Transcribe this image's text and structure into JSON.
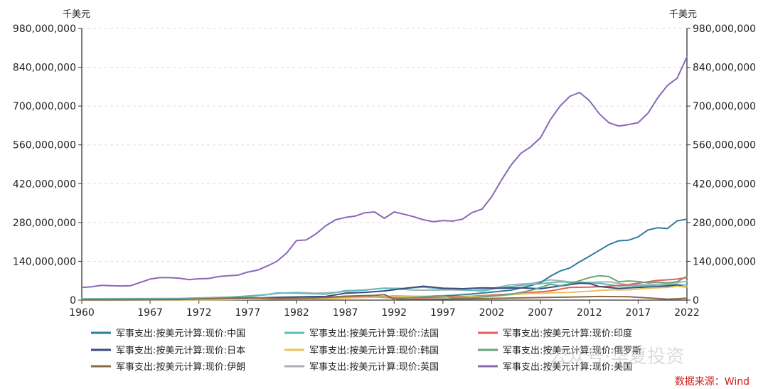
{
  "chart_data": {
    "type": "line",
    "title": "",
    "unit_left": "千美元",
    "unit_right": "千美元",
    "ylim": [
      0,
      980000000
    ],
    "yticks": [
      0,
      140000000,
      280000000,
      420000000,
      560000000,
      700000000,
      840000000,
      980000000
    ],
    "ytick_labels": [
      "0",
      "140,000,000",
      "280,000,000",
      "420,000,000",
      "560,000,000",
      "700,000,000",
      "840,000,000",
      "980,000,000"
    ],
    "xlim": [
      1960,
      2022
    ],
    "xticks": [
      1960,
      1967,
      1972,
      1977,
      1982,
      1987,
      1992,
      1997,
      2002,
      2007,
      2012,
      2017,
      2022
    ],
    "xtick_labels": [
      "1960",
      "1967",
      "1972",
      "1977",
      "1982",
      "1987",
      "1992",
      "1997",
      "2002",
      "2007",
      "2012",
      "2017",
      "2022"
    ],
    "grid": true,
    "legend_position": "bottom",
    "series": [
      {
        "name": "军事支出:按美元计算:现价:中国",
        "color": "#2e7d9a",
        "points": [
          [
            1989,
            11000000
          ],
          [
            1992,
            14000000
          ],
          [
            1995,
            13000000
          ],
          [
            1998,
            17000000
          ],
          [
            2000,
            22000000
          ],
          [
            2002,
            29000000
          ],
          [
            2004,
            36000000
          ],
          [
            2006,
            52000000
          ],
          [
            2007,
            63000000
          ],
          [
            2008,
            86000000
          ],
          [
            2009,
            105000000
          ],
          [
            2010,
            116000000
          ],
          [
            2011,
            138000000
          ],
          [
            2012,
            158000000
          ],
          [
            2013,
            179000000
          ],
          [
            2014,
            200000000
          ],
          [
            2015,
            214000000
          ],
          [
            2016,
            216000000
          ],
          [
            2017,
            228000000
          ],
          [
            2018,
            253000000
          ],
          [
            2019,
            261000000
          ],
          [
            2020,
            258000000
          ],
          [
            2021,
            286000000
          ],
          [
            2022,
            292000000
          ]
        ]
      },
      {
        "name": "军事支出:按美元计算:现价:法国",
        "color": "#5fbcbc",
        "points": [
          [
            1960,
            4000000
          ],
          [
            1965,
            5000000
          ],
          [
            1970,
            6000000
          ],
          [
            1975,
            10000000
          ],
          [
            1979,
            20000000
          ],
          [
            1980,
            26000000
          ],
          [
            1982,
            25000000
          ],
          [
            1985,
            21000000
          ],
          [
            1987,
            34000000
          ],
          [
            1989,
            36000000
          ],
          [
            1991,
            43000000
          ],
          [
            1993,
            42000000
          ],
          [
            1995,
            47000000
          ],
          [
            1997,
            40000000
          ],
          [
            1999,
            38000000
          ],
          [
            2001,
            33000000
          ],
          [
            2003,
            45000000
          ],
          [
            2005,
            53000000
          ],
          [
            2007,
            59000000
          ],
          [
            2009,
            66000000
          ],
          [
            2011,
            62000000
          ],
          [
            2013,
            61000000
          ],
          [
            2015,
            51000000
          ],
          [
            2017,
            52000000
          ],
          [
            2019,
            52000000
          ],
          [
            2021,
            57000000
          ],
          [
            2022,
            54000000
          ]
        ]
      },
      {
        "name": "军事支出:按美元计算:现价:印度",
        "color": "#e0605a",
        "points": [
          [
            1960,
            1000000
          ],
          [
            1965,
            2000000
          ],
          [
            1970,
            2000000
          ],
          [
            1975,
            3000000
          ],
          [
            1980,
            5000000
          ],
          [
            1985,
            7000000
          ],
          [
            1987,
            10000000
          ],
          [
            1990,
            11000000
          ],
          [
            1992,
            8000000
          ],
          [
            1995,
            9000000
          ],
          [
            2000,
            14000000
          ],
          [
            2005,
            24000000
          ],
          [
            2008,
            33000000
          ],
          [
            2010,
            46000000
          ],
          [
            2012,
            47000000
          ],
          [
            2014,
            50000000
          ],
          [
            2016,
            56000000
          ],
          [
            2018,
            66000000
          ],
          [
            2019,
            71000000
          ],
          [
            2020,
            73000000
          ],
          [
            2021,
            76000000
          ],
          [
            2022,
            81000000
          ]
        ]
      },
      {
        "name": "军事支出:按美元计算:现价:日本",
        "color": "#3a4a7c",
        "points": [
          [
            1960,
            1000000
          ],
          [
            1965,
            1000000
          ],
          [
            1970,
            2000000
          ],
          [
            1975,
            4000000
          ],
          [
            1980,
            10000000
          ],
          [
            1983,
            12000000
          ],
          [
            1985,
            13000000
          ],
          [
            1987,
            25000000
          ],
          [
            1989,
            28000000
          ],
          [
            1991,
            33000000
          ],
          [
            1993,
            42000000
          ],
          [
            1995,
            50000000
          ],
          [
            1997,
            43000000
          ],
          [
            1999,
            41000000
          ],
          [
            2001,
            44000000
          ],
          [
            2003,
            43000000
          ],
          [
            2005,
            44000000
          ],
          [
            2007,
            41000000
          ],
          [
            2009,
            51000000
          ],
          [
            2011,
            61000000
          ],
          [
            2012,
            60000000
          ],
          [
            2013,
            49000000
          ],
          [
            2015,
            42000000
          ],
          [
            2017,
            46000000
          ],
          [
            2019,
            48000000
          ],
          [
            2021,
            54000000
          ],
          [
            2022,
            46000000
          ]
        ]
      },
      {
        "name": "军事支出:按美元计算:现价:韩国",
        "color": "#e8c35b",
        "points": [
          [
            1960,
            1000000
          ],
          [
            1970,
            1000000
          ],
          [
            1975,
            2000000
          ],
          [
            1980,
            4000000
          ],
          [
            1985,
            4000000
          ],
          [
            1990,
            11000000
          ],
          [
            1995,
            14000000
          ],
          [
            1997,
            14000000
          ],
          [
            1998,
            9000000
          ],
          [
            2000,
            13000000
          ],
          [
            2002,
            14000000
          ],
          [
            2005,
            22000000
          ],
          [
            2008,
            26000000
          ],
          [
            2010,
            28000000
          ],
          [
            2012,
            32000000
          ],
          [
            2014,
            37000000
          ],
          [
            2016,
            37000000
          ],
          [
            2018,
            43000000
          ],
          [
            2020,
            46000000
          ],
          [
            2021,
            50000000
          ],
          [
            2022,
            47000000
          ]
        ]
      },
      {
        "name": "军事支出:按美元计算:现价:俄罗斯",
        "color": "#6aa476",
        "points": [
          [
            1992,
            1000000
          ],
          [
            1993,
            8000000
          ],
          [
            1995,
            12000000
          ],
          [
            1997,
            16000000
          ],
          [
            1998,
            8000000
          ],
          [
            2000,
            9000000
          ],
          [
            2002,
            14000000
          ],
          [
            2004,
            21000000
          ],
          [
            2006,
            35000000
          ],
          [
            2008,
            57000000
          ],
          [
            2009,
            52000000
          ],
          [
            2010,
            59000000
          ],
          [
            2011,
            70000000
          ],
          [
            2012,
            81000000
          ],
          [
            2013,
            88000000
          ],
          [
            2014,
            85000000
          ],
          [
            2015,
            66000000
          ],
          [
            2016,
            69000000
          ],
          [
            2017,
            67000000
          ],
          [
            2018,
            62000000
          ],
          [
            2019,
            65000000
          ],
          [
            2020,
            62000000
          ],
          [
            2021,
            66000000
          ],
          [
            2022,
            86000000
          ]
        ]
      },
      {
        "name": "军事支出:按美元计算:现价:伊朗",
        "color": "#8a6a48",
        "points": [
          [
            1960,
            1000000
          ],
          [
            1970,
            2000000
          ],
          [
            1974,
            6000000
          ],
          [
            1976,
            9000000
          ],
          [
            1978,
            8000000
          ],
          [
            1980,
            6000000
          ],
          [
            1984,
            8000000
          ],
          [
            1987,
            14000000
          ],
          [
            1990,
            17000000
          ],
          [
            1991,
            20000000
          ],
          [
            1992,
            3000000
          ],
          [
            1995,
            3000000
          ],
          [
            2000,
            5000000
          ],
          [
            2005,
            8000000
          ],
          [
            2010,
            11000000
          ],
          [
            2013,
            13000000
          ],
          [
            2016,
            12000000
          ],
          [
            2019,
            6000000
          ],
          [
            2020,
            3000000
          ],
          [
            2021,
            5000000
          ],
          [
            2022,
            7000000
          ]
        ]
      },
      {
        "name": "军事支出:按美元计算:现价:英国",
        "color": "#a9b2bb",
        "points": [
          [
            1960,
            5000000
          ],
          [
            1965,
            6000000
          ],
          [
            1970,
            6000000
          ],
          [
            1973,
            9000000
          ],
          [
            1975,
            11000000
          ],
          [
            1977,
            11000000
          ],
          [
            1980,
            24000000
          ],
          [
            1982,
            28000000
          ],
          [
            1984,
            25000000
          ],
          [
            1986,
            28000000
          ],
          [
            1988,
            34000000
          ],
          [
            1990,
            40000000
          ],
          [
            1991,
            43000000
          ],
          [
            1992,
            41000000
          ],
          [
            1994,
            36000000
          ],
          [
            1996,
            36000000
          ],
          [
            1998,
            37000000
          ],
          [
            2000,
            35000000
          ],
          [
            2002,
            42000000
          ],
          [
            2004,
            56000000
          ],
          [
            2006,
            60000000
          ],
          [
            2008,
            73000000
          ],
          [
            2010,
            66000000
          ],
          [
            2012,
            64000000
          ],
          [
            2014,
            66000000
          ],
          [
            2016,
            55000000
          ],
          [
            2018,
            56000000
          ],
          [
            2020,
            59000000
          ],
          [
            2022,
            68000000
          ]
        ]
      },
      {
        "name": "军事支出:按美元计算:现价:美国",
        "color": "#8b67b8",
        "points": [
          [
            1960,
            46000000
          ],
          [
            1961,
            48000000
          ],
          [
            1962,
            53000000
          ],
          [
            1963,
            52000000
          ],
          [
            1964,
            51000000
          ],
          [
            1965,
            52000000
          ],
          [
            1966,
            64000000
          ],
          [
            1967,
            76000000
          ],
          [
            1968,
            81000000
          ],
          [
            1969,
            81000000
          ],
          [
            1970,
            79000000
          ],
          [
            1971,
            74000000
          ],
          [
            1972,
            77000000
          ],
          [
            1973,
            78000000
          ],
          [
            1974,
            85000000
          ],
          [
            1975,
            88000000
          ],
          [
            1976,
            90000000
          ],
          [
            1977,
            101000000
          ],
          [
            1978,
            108000000
          ],
          [
            1979,
            123000000
          ],
          [
            1980,
            140000000
          ],
          [
            1981,
            170000000
          ],
          [
            1982,
            215000000
          ],
          [
            1983,
            217000000
          ],
          [
            1984,
            239000000
          ],
          [
            1985,
            268000000
          ],
          [
            1986,
            290000000
          ],
          [
            1987,
            298000000
          ],
          [
            1988,
            303000000
          ],
          [
            1989,
            315000000
          ],
          [
            1990,
            318000000
          ],
          [
            1991,
            295000000
          ],
          [
            1992,
            318000000
          ],
          [
            1993,
            310000000
          ],
          [
            1994,
            301000000
          ],
          [
            1995,
            290000000
          ],
          [
            1996,
            283000000
          ],
          [
            1997,
            287000000
          ],
          [
            1998,
            285000000
          ],
          [
            1999,
            292000000
          ],
          [
            2000,
            316000000
          ],
          [
            2001,
            328000000
          ],
          [
            2002,
            373000000
          ],
          [
            2003,
            433000000
          ],
          [
            2004,
            488000000
          ],
          [
            2005,
            530000000
          ],
          [
            2006,
            553000000
          ],
          [
            2007,
            586000000
          ],
          [
            2008,
            650000000
          ],
          [
            2009,
            700000000
          ],
          [
            2010,
            735000000
          ],
          [
            2011,
            749000000
          ],
          [
            2012,
            720000000
          ],
          [
            2013,
            673000000
          ],
          [
            2014,
            640000000
          ],
          [
            2015,
            628000000
          ],
          [
            2016,
            633000000
          ],
          [
            2017,
            640000000
          ],
          [
            2018,
            674000000
          ],
          [
            2019,
            729000000
          ],
          [
            2020,
            774000000
          ],
          [
            2021,
            801000000
          ],
          [
            2022,
            877000000
          ]
        ]
      }
    ]
  },
  "source_label": "数据来源：Wind",
  "watermark_text": "公众号·华夏投资"
}
